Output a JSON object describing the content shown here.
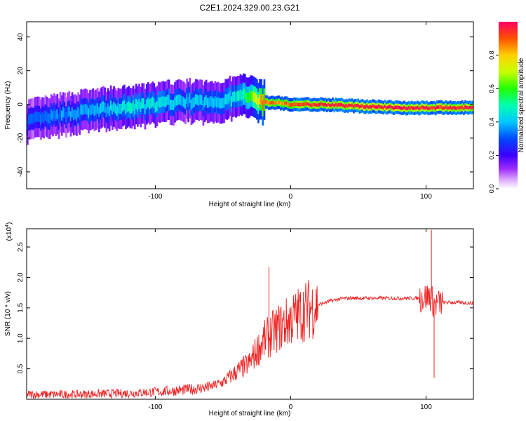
{
  "figure": {
    "title": "C2E1.2024.329.00.23.G21"
  },
  "chart_data": [
    {
      "type": "heatmap",
      "title": "C2E1.2024.329.00.23.G21",
      "xlabel": "Height of straight line (km)",
      "ylabel": "Frequency (Hz)",
      "xlim": [
        -195,
        135
      ],
      "ylim": [
        -50,
        49
      ],
      "xticks": [
        -100,
        0,
        100
      ],
      "xtick_labels": [
        "-100",
        "0",
        "100"
      ],
      "yticks": [
        -40,
        -20,
        0,
        20,
        40
      ],
      "ytick_labels": [
        "-40",
        "-20",
        "0",
        "20",
        "40"
      ],
      "colorbar": {
        "label": "Normalized spectral amplitude",
        "range": [
          0,
          1
        ],
        "ticks": [
          0,
          0.2,
          0.4,
          0.6,
          0.8
        ],
        "tick_labels": [
          "0.0",
          "0.2",
          "0.4",
          "0.6",
          "0.8"
        ],
        "colormap": "rainbow"
      },
      "ridge": {
        "x": [
          -195,
          -180,
          -160,
          -140,
          -120,
          -100,
          -80,
          -60,
          -40,
          -30,
          -25,
          -20,
          -10,
          0,
          20,
          50,
          80,
          100,
          120,
          135
        ],
        "freq": [
          -10,
          -8,
          -5,
          -3,
          -2,
          0,
          2,
          1,
          4,
          6,
          3,
          1,
          1,
          0,
          0,
          -1,
          -2,
          -2,
          -2,
          -2
        ],
        "amplitude": [
          0.3,
          0.35,
          0.35,
          0.4,
          0.45,
          0.45,
          0.4,
          0.4,
          0.45,
          0.6,
          0.75,
          0.9,
          0.85,
          0.9,
          0.95,
          0.97,
          0.97,
          0.95,
          0.95,
          0.95
        ]
      },
      "grid": false
    },
    {
      "type": "line",
      "xlabel": "Height of straight line (km)",
      "ylabel": "SNR (10 * v/v)",
      "yscale_label": "(x10",
      "yscale_exp": "4",
      "xlim": [
        -195,
        135
      ],
      "ylim": [
        0,
        2.8
      ],
      "xticks": [
        -100,
        0,
        100
      ],
      "xtick_labels": [
        "-100",
        "0",
        "100"
      ],
      "yticks": [
        0.5,
        1.0,
        1.5,
        2.0,
        2.5
      ],
      "ytick_labels": [
        "0.5",
        "1.0",
        "1.5",
        "2.0",
        "2.5"
      ],
      "series": [
        {
          "color": "#ee2222",
          "x": [
            -195,
            -180,
            -160,
            -140,
            -120,
            -100,
            -80,
            -60,
            -50,
            -40,
            -30,
            -25,
            -20,
            -15,
            -10,
            0,
            10,
            20,
            30,
            40,
            60,
            80,
            95,
            100,
            103,
            105,
            107,
            110,
            115,
            120,
            135
          ],
          "y": [
            0.08,
            0.08,
            0.08,
            0.09,
            0.1,
            0.12,
            0.15,
            0.2,
            0.28,
            0.45,
            0.6,
            0.8,
            0.95,
            1.05,
            1.15,
            1.3,
            1.45,
            1.55,
            1.62,
            1.66,
            1.66,
            1.66,
            1.66,
            1.68,
            1.7,
            1.6,
            1.55,
            1.58,
            1.59,
            1.59,
            1.58
          ],
          "spikes": [
            {
              "x": -16,
              "y": 2.17
            },
            {
              "x": 104,
              "y": 2.78
            },
            {
              "x": 106,
              "y": 0.35
            }
          ]
        }
      ],
      "grid": false
    }
  ]
}
